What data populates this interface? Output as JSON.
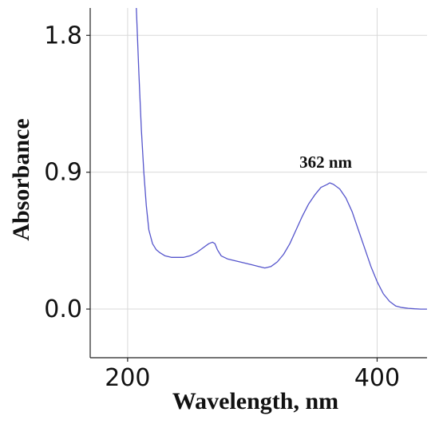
{
  "chart_data": {
    "type": "line",
    "title": "",
    "xlabel": "Wavelength, nm",
    "ylabel": "Absorbance",
    "xlim": [
      170,
      440
    ],
    "ylim": [
      -0.32,
      1.98
    ],
    "x_ticks": [
      200,
      400
    ],
    "x_tick_labels": [
      "200",
      "400"
    ],
    "y_ticks": [
      0.0,
      0.9,
      1.8
    ],
    "y_tick_labels": [
      "0.0",
      "0.9",
      "1.8"
    ],
    "grid": true,
    "legend": "none",
    "series": [
      {
        "color": "#5555cc",
        "x": [
          207,
          209,
          211,
          213,
          215,
          217,
          220,
          223,
          226,
          230,
          235,
          240,
          245,
          250,
          255,
          260,
          265,
          268,
          270,
          272,
          275,
          280,
          285,
          290,
          295,
          300,
          305,
          310,
          315,
          320,
          325,
          330,
          335,
          340,
          345,
          350,
          355,
          360,
          362,
          365,
          370,
          375,
          380,
          385,
          390,
          395,
          400,
          405,
          410,
          415,
          420,
          425,
          430,
          435,
          440
        ],
        "y": [
          1.98,
          1.55,
          1.18,
          0.9,
          0.68,
          0.52,
          0.43,
          0.39,
          0.37,
          0.35,
          0.34,
          0.34,
          0.34,
          0.35,
          0.37,
          0.4,
          0.43,
          0.44,
          0.43,
          0.39,
          0.35,
          0.33,
          0.32,
          0.31,
          0.3,
          0.29,
          0.28,
          0.27,
          0.28,
          0.31,
          0.36,
          0.43,
          0.52,
          0.61,
          0.69,
          0.75,
          0.8,
          0.82,
          0.83,
          0.82,
          0.79,
          0.73,
          0.64,
          0.52,
          0.4,
          0.28,
          0.18,
          0.1,
          0.05,
          0.02,
          0.01,
          0.005,
          0.002,
          0.0,
          0.0
        ]
      }
    ],
    "annotations": [
      {
        "text": "362 nm",
        "x": 362,
        "y": 0.93
      }
    ]
  }
}
